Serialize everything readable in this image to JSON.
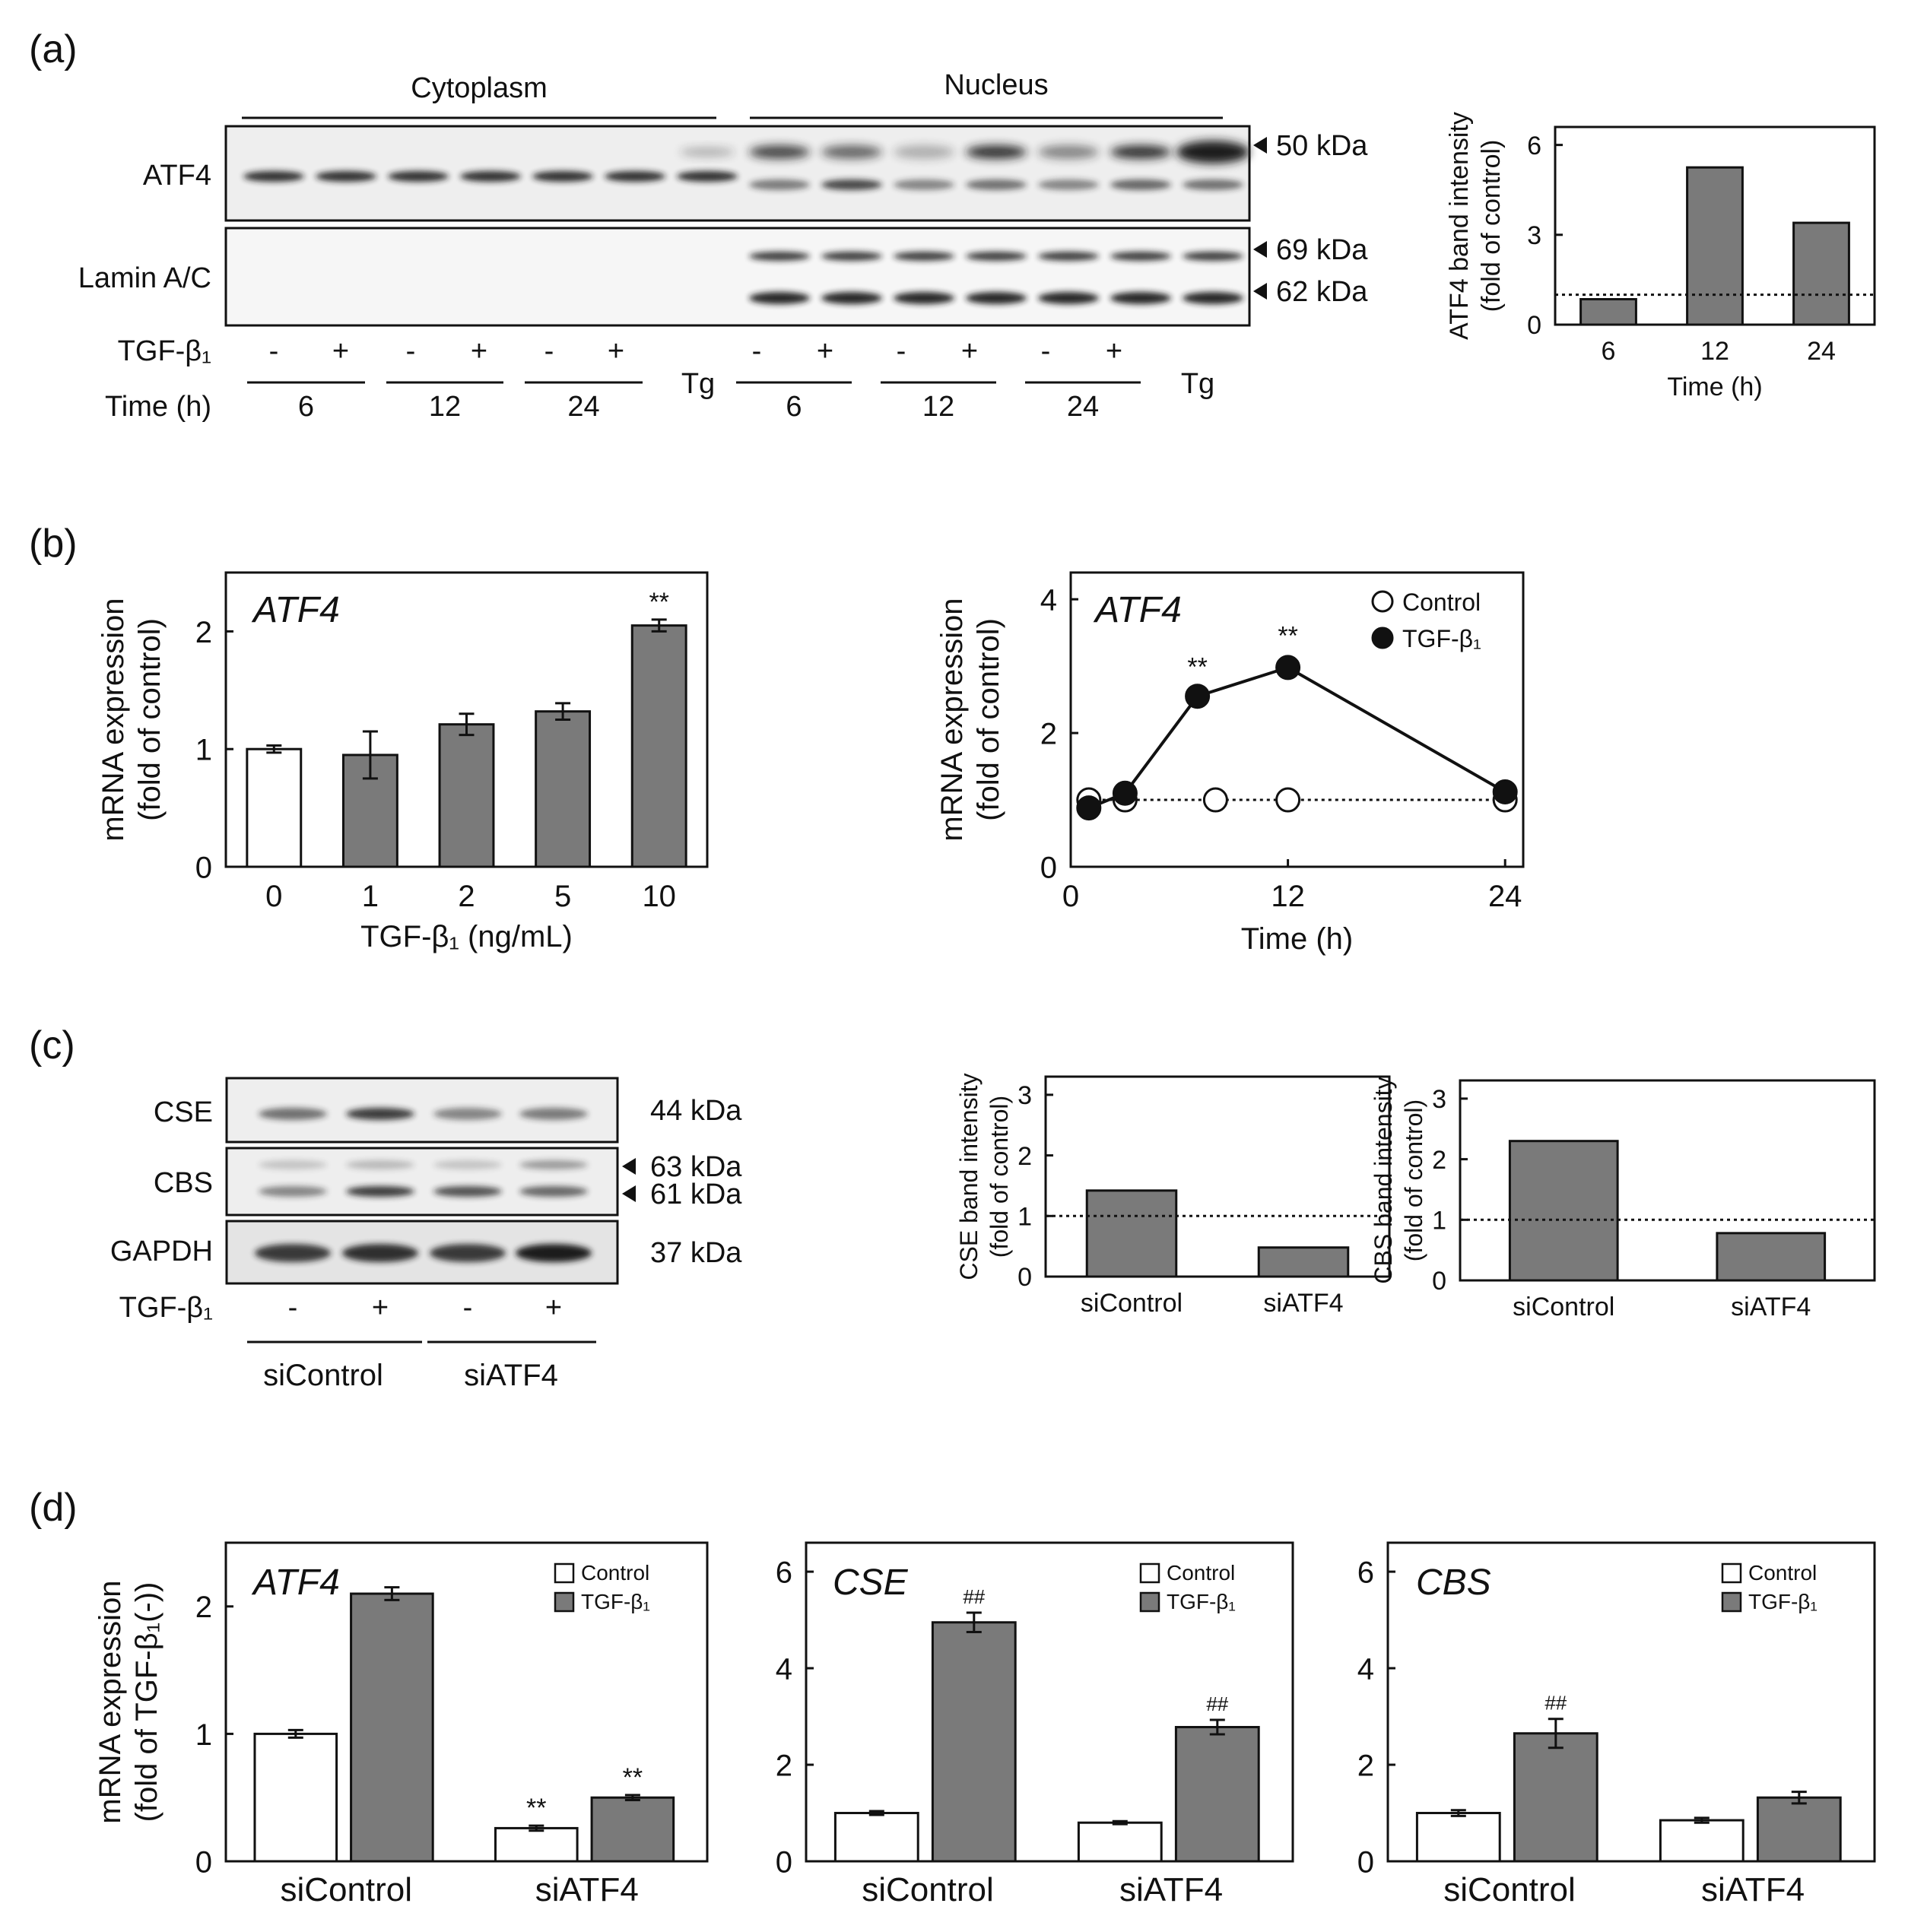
{
  "colors": {
    "gray_bar": "#7a7a7a",
    "white_bar": "#ffffff",
    "axis": "#111111",
    "blot_bg": "#f2f2f2",
    "band": "#1e1e1e"
  },
  "panel_a": {
    "label": "(a)",
    "cytoplasm": "Cytoplasm",
    "nucleus": "Nucleus",
    "row_atf4": "ATF4",
    "row_lamin": "Lamin A/C",
    "mw": [
      "50 kDa",
      "69 kDa",
      "62 kDa"
    ],
    "tgf_label": "TGF-β₁",
    "time_label": "Time (h)",
    "signs": [
      "-",
      "+",
      "-",
      "+",
      "-",
      "+",
      "-",
      "+",
      "-",
      "+",
      "-",
      "+"
    ],
    "times": [
      "6",
      "12",
      "24",
      "6",
      "12",
      "24"
    ],
    "tg": [
      "Tg",
      "Tg"
    ]
  },
  "panel_b": {
    "label": "(b)"
  },
  "panel_c": {
    "label": "(c)",
    "rows": [
      "CSE",
      "CBS",
      "GAPDH"
    ],
    "mw": [
      "44 kDa",
      "63 kDa",
      "61 kDa",
      "37 kDa"
    ],
    "tgf_label": "TGF-β₁",
    "signs": [
      "-",
      "+",
      "-",
      "+"
    ],
    "groups": [
      "siControl",
      "siATF4"
    ]
  },
  "panel_d": {
    "label": "(d)"
  },
  "chart_data": [
    {
      "id": "a_bar",
      "type": "bar",
      "title": "",
      "categories": [
        "6",
        "12",
        "24"
      ],
      "values": [
        0.85,
        5.25,
        3.4
      ],
      "xlabel": "Time (h)",
      "ylabel": "ATF4 band intensity\n(fold of control)",
      "ylim": [
        0,
        6.6
      ],
      "yticks": [
        "0",
        "3",
        "6"
      ],
      "ytick_values": [
        0,
        3,
        6
      ],
      "reference_line": 1
    },
    {
      "id": "b_bar",
      "type": "bar",
      "title": "ATF4",
      "categories": [
        "0",
        "1",
        "2",
        "5",
        "10"
      ],
      "values": [
        1.0,
        0.95,
        1.21,
        1.32,
        2.05
      ],
      "errors": [
        0.03,
        0.2,
        0.09,
        0.07,
        0.05
      ],
      "bar_colors": [
        "white",
        "gray",
        "gray",
        "gray",
        "gray"
      ],
      "annotations": [
        "",
        "",
        "",
        "",
        "**"
      ],
      "xlabel": "TGF-β₁ (ng/mL)",
      "ylabel": "mRNA expression\n(fold of control)",
      "ylim": [
        0,
        2.5
      ],
      "yticks": [
        "0",
        "1",
        "2"
      ],
      "ytick_values": [
        0,
        1,
        2
      ]
    },
    {
      "id": "b_line",
      "type": "line",
      "title": "ATF4",
      "series": [
        {
          "name": "Control",
          "marker": "open",
          "dotted": true,
          "x": [
            1,
            3,
            8,
            12,
            24
          ],
          "y": [
            1.0,
            1.0,
            1.0,
            1.0,
            1.0
          ],
          "errors": [
            0.03,
            0.03,
            0.03,
            0.03,
            0.03
          ]
        },
        {
          "name": "TGF-β₁",
          "marker": "filled",
          "dotted": false,
          "x": [
            1,
            3,
            7,
            12,
            24
          ],
          "y": [
            0.88,
            1.1,
            2.55,
            2.98,
            1.12
          ],
          "errors": [
            0.05,
            0.05,
            0.08,
            0.12,
            0.05
          ],
          "annotations": [
            "",
            "",
            "**",
            "**",
            ""
          ]
        }
      ],
      "xlabel": "Time (h)",
      "ylabel": "mRNA expression\n(fold of control)",
      "xlim": [
        0,
        25
      ],
      "xticks": [
        "0",
        "12",
        "24"
      ],
      "xtick_values": [
        0,
        12,
        24
      ],
      "ylim": [
        0,
        4.4
      ],
      "yticks": [
        "0",
        "2",
        "4"
      ],
      "ytick_values": [
        0,
        2,
        4
      ],
      "legend": "top-right"
    },
    {
      "id": "c_cse",
      "type": "bar",
      "title": "",
      "categories": [
        "siControl",
        "siATF4"
      ],
      "values": [
        1.42,
        0.48
      ],
      "xlabel": "",
      "ylabel": "CSE band intensity\n(fold of control)",
      "ylim": [
        0,
        3.3
      ],
      "yticks": [
        "0",
        "1",
        "2",
        "3"
      ],
      "ytick_values": [
        0,
        1,
        2,
        3
      ],
      "reference_line": 1
    },
    {
      "id": "c_cbs",
      "type": "bar",
      "title": "",
      "categories": [
        "siControl",
        "siATF4"
      ],
      "values": [
        2.3,
        0.78
      ],
      "xlabel": "",
      "ylabel": "CBS band intensity\n(fold of control)",
      "ylim": [
        0,
        3.3
      ],
      "yticks": [
        "0",
        "1",
        "2",
        "3"
      ],
      "ytick_values": [
        0,
        1,
        2,
        3
      ],
      "reference_line": 1
    },
    {
      "id": "d_atf4",
      "type": "bar",
      "title": "ATF4",
      "categories": [
        "siControl",
        "siATF4"
      ],
      "series": [
        {
          "name": "Control",
          "values": [
            1.0,
            0.26
          ],
          "errors": [
            0.03,
            0.02
          ],
          "annotations": [
            "",
            "**"
          ]
        },
        {
          "name": "TGF-β₁",
          "values": [
            2.1,
            0.5
          ],
          "errors": [
            0.05,
            0.02
          ],
          "annotations": [
            "",
            "**"
          ]
        }
      ],
      "xlabel": "",
      "ylabel": "mRNA expression\n(fold of TGF-β₁(-))",
      "ylim": [
        0,
        2.5
      ],
      "yticks": [
        "0",
        "1",
        "2"
      ],
      "ytick_values": [
        0,
        1,
        2
      ],
      "legend": "top-right"
    },
    {
      "id": "d_cse",
      "type": "bar",
      "title": "CSE",
      "categories": [
        "siControl",
        "siATF4"
      ],
      "series": [
        {
          "name": "Control",
          "values": [
            1.0,
            0.8
          ],
          "errors": [
            0.04,
            0.03
          ],
          "annotations": [
            "",
            ""
          ]
        },
        {
          "name": "TGF-β₁",
          "values": [
            4.95,
            2.78
          ],
          "errors": [
            0.2,
            0.15
          ],
          "annotations": [
            "##",
            "##"
          ]
        }
      ],
      "xlabel": "",
      "ylabel": "",
      "ylim": [
        0,
        6.6
      ],
      "yticks": [
        "0",
        "2",
        "4",
        "6"
      ],
      "ytick_values": [
        0,
        2,
        4,
        6
      ],
      "legend": "top-right"
    },
    {
      "id": "d_cbs",
      "type": "bar",
      "title": "CBS",
      "categories": [
        "siControl",
        "siATF4"
      ],
      "series": [
        {
          "name": "Control",
          "values": [
            1.0,
            0.85
          ],
          "errors": [
            0.06,
            0.05
          ],
          "annotations": [
            "",
            ""
          ]
        },
        {
          "name": "TGF-β₁",
          "values": [
            2.65,
            1.32
          ],
          "errors": [
            0.3,
            0.12
          ],
          "annotations": [
            "##",
            ""
          ]
        }
      ],
      "xlabel": "",
      "ylabel": "",
      "ylim": [
        0,
        6.6
      ],
      "yticks": [
        "0",
        "2",
        "4",
        "6"
      ],
      "ytick_values": [
        0,
        2,
        4,
        6
      ],
      "legend": "top-right"
    }
  ]
}
